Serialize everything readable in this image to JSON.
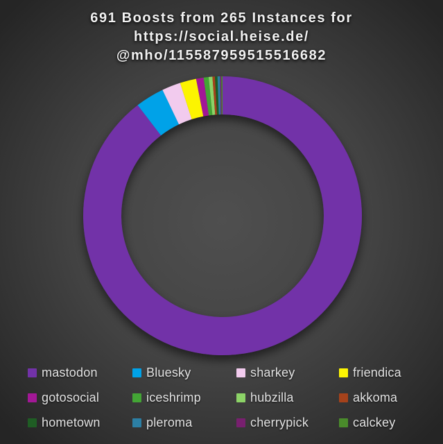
{
  "title": {
    "line1": "691 Boosts from 265 Instances for",
    "line2": "https://social.heise.de/",
    "line3": "@mho/115587959515516682"
  },
  "chart_data": {
    "type": "pie",
    "subtype": "donut",
    "title": "691 Boosts from 265 Instances for https://social.heise.de/@mho/115587959515516682",
    "total_boosts": 691,
    "total_instances": 265,
    "start_angle_deg": 0,
    "direction": "clockwise",
    "legend_position": "bottom",
    "items": [
      {
        "label": "mastodon",
        "value": 619,
        "color": "#7232A8"
      },
      {
        "label": "Bluesky",
        "value": 23,
        "color": "#00A2E8"
      },
      {
        "label": "sharkey",
        "value": 15,
        "color": "#F2CBEE"
      },
      {
        "label": "friendica",
        "value": 13,
        "color": "#FCF403"
      },
      {
        "label": "gotosocial",
        "value": 6,
        "color": "#A21896"
      },
      {
        "label": "iceshrimp",
        "value": 4,
        "color": "#43A535"
      },
      {
        "label": "hubzilla",
        "value": 3,
        "color": "#8CD367"
      },
      {
        "label": "akkoma",
        "value": 2,
        "color": "#A5421B"
      },
      {
        "label": "hometown",
        "value": 2,
        "color": "#1F5D24"
      },
      {
        "label": "pleroma",
        "value": 2,
        "color": "#2C7FA4"
      },
      {
        "label": "cherrypick",
        "value": 1,
        "color": "#78206F"
      },
      {
        "label": "calckey",
        "value": 1,
        "color": "#4A8B2B"
      }
    ]
  },
  "colors": {
    "background_center": "#4F4F4F",
    "background_edge": "#252525",
    "title_text": "#F2F2F2",
    "legend_text": "#E3E3E3"
  }
}
